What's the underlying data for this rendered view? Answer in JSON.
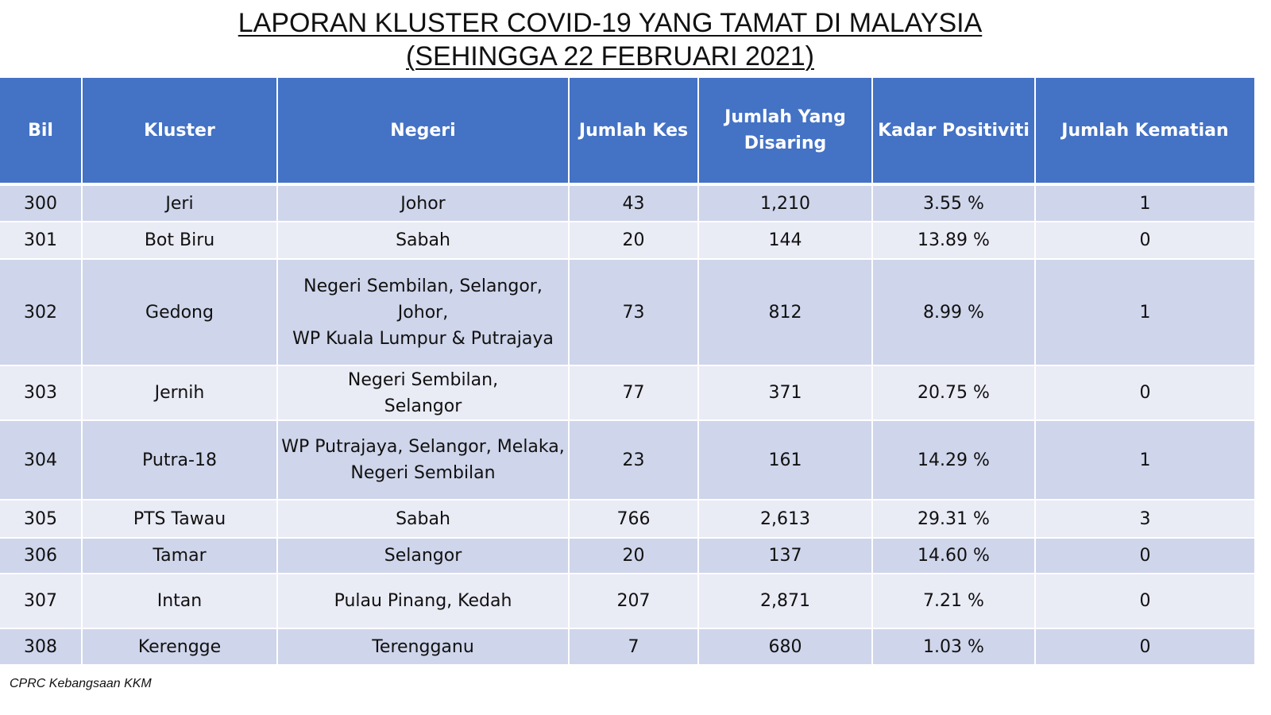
{
  "title": {
    "line1": "LAPORAN KLUSTER COVID-19 YANG TAMAT DI MALAYSIA",
    "line2": "(SEHINGGA 22 FEBRUARI 2021)"
  },
  "colors": {
    "header": "#4472C4",
    "row_odd": "#CFD5EA",
    "row_even": "#E9EBF5"
  },
  "table": {
    "headers": [
      "Bil",
      "Kluster",
      "Negeri",
      "Jumlah Kes",
      "Jumlah Yang Disaring",
      "Kadar Positiviti",
      "Jumlah Kematian"
    ],
    "rows": [
      [
        "300",
        "Jeri",
        "Johor",
        "43",
        "1,210",
        "3.55 %",
        "1"
      ],
      [
        "301",
        "Bot Biru",
        "Sabah",
        "20",
        "144",
        "13.89 %",
        "0"
      ],
      [
        "302",
        "Gedong",
        "Negeri Sembilan, Selangor,\nJohor,\nWP Kuala Lumpur & Putrajaya",
        "73",
        "812",
        "8.99 %",
        "1"
      ],
      [
        "303",
        "Jernih",
        "Negeri Sembilan,\nSelangor",
        "77",
        "371",
        "20.75 %",
        "0"
      ],
      [
        "304",
        "Putra-18",
        "WP Putrajaya, Selangor, Melaka,\nNegeri Sembilan",
        "23",
        "161",
        "14.29 %",
        "1"
      ],
      [
        "305",
        "PTS Tawau",
        "Sabah",
        "766",
        "2,613",
        "29.31 %",
        "3"
      ],
      [
        "306",
        "Tamar",
        "Selangor",
        "20",
        "137",
        "14.60 %",
        "0"
      ],
      [
        "307",
        "Intan",
        "Pulau Pinang, Kedah",
        "207",
        "2,871",
        "7.21 %",
        "0"
      ],
      [
        "308",
        "Kerengge",
        "Terengganu",
        "7",
        "680",
        "1.03 %",
        "0"
      ]
    ]
  },
  "source": "CPRC Kebangsaan KKM"
}
